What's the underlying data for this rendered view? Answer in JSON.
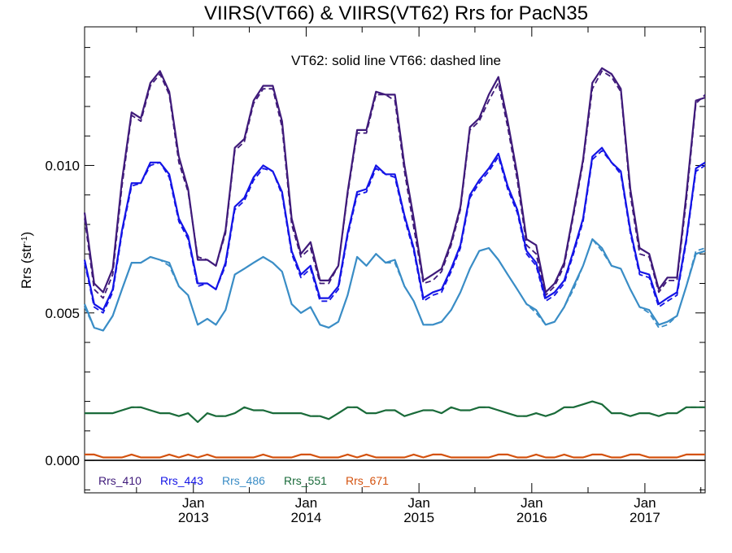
{
  "chart_data": {
    "type": "line",
    "title": "VIIRS(VT66) & VIIRS(VT62)  Rrs for PacN35",
    "annotation": "VT62: solid line   VT66: dashed line",
    "ylabel": "Rrs (str",
    "ylabel_sup": "-1",
    "ylabel_close": ")",
    "xlabel": "",
    "xlim": [
      "2012-01-15",
      "2017-07-15"
    ],
    "ylim": [
      -0.0011,
      0.0147
    ],
    "grid": false,
    "legend_position": "bottom-left",
    "y_ticks": [
      {
        "value": 0.0,
        "label": "0.000"
      },
      {
        "value": 0.005,
        "label": "0.005"
      },
      {
        "value": 0.01,
        "label": "0.010"
      }
    ],
    "x_ticks": [
      {
        "value": "2013-01-01",
        "label_top": "Jan",
        "label_bottom": "2013"
      },
      {
        "value": "2014-01-01",
        "label_top": "Jan",
        "label_bottom": "2014"
      },
      {
        "value": "2015-01-01",
        "label_top": "Jan",
        "label_bottom": "2015"
      },
      {
        "value": "2016-01-01",
        "label_top": "Jan",
        "label_bottom": "2016"
      },
      {
        "value": "2017-01-01",
        "label_top": "Jan",
        "label_bottom": "2017"
      }
    ],
    "x_months": [
      "2012-01-15",
      "2012-02-15",
      "2012-03-15",
      "2012-04-15",
      "2012-05-15",
      "2012-06-15",
      "2012-07-15",
      "2012-08-15",
      "2012-09-15",
      "2012-10-15",
      "2012-11-15",
      "2012-12-15",
      "2013-01-15",
      "2013-02-15",
      "2013-03-15",
      "2013-04-15",
      "2013-05-15",
      "2013-06-15",
      "2013-07-15",
      "2013-08-15",
      "2013-09-15",
      "2013-10-15",
      "2013-11-15",
      "2013-12-15",
      "2014-01-15",
      "2014-02-15",
      "2014-03-15",
      "2014-04-15",
      "2014-05-15",
      "2014-06-15",
      "2014-07-15",
      "2014-08-15",
      "2014-09-15",
      "2014-10-15",
      "2014-11-15",
      "2014-12-15",
      "2015-01-15",
      "2015-02-15",
      "2015-03-15",
      "2015-04-15",
      "2015-05-15",
      "2015-06-15",
      "2015-07-15",
      "2015-08-15",
      "2015-09-15",
      "2015-10-15",
      "2015-11-15",
      "2015-12-15",
      "2016-01-15",
      "2016-02-15",
      "2016-03-15",
      "2016-04-15",
      "2016-05-15",
      "2016-06-15",
      "2016-07-15",
      "2016-08-15",
      "2016-09-15",
      "2016-10-15",
      "2016-11-15",
      "2016-12-15",
      "2017-01-15",
      "2017-02-15",
      "2017-03-15",
      "2017-04-15",
      "2017-05-15",
      "2017-06-15",
      "2017-07-15"
    ],
    "series": [
      {
        "name": "Rrs_410",
        "color": "#3f1a7a",
        "vt62": [
          0.0084,
          0.006,
          0.0057,
          0.0065,
          0.0095,
          0.0118,
          0.0116,
          0.0128,
          0.0132,
          0.0125,
          0.0103,
          0.0092,
          0.0068,
          0.0068,
          0.0066,
          0.0078,
          0.0106,
          0.0109,
          0.0122,
          0.0127,
          0.0127,
          0.0115,
          0.0082,
          0.007,
          0.0074,
          0.0061,
          0.0061,
          0.0066,
          0.0091,
          0.0112,
          0.0112,
          0.0125,
          0.0124,
          0.0124,
          0.01,
          0.0082,
          0.0061,
          0.0063,
          0.0065,
          0.0074,
          0.0086,
          0.0113,
          0.0116,
          0.0124,
          0.013,
          0.0115,
          0.0097,
          0.0075,
          0.0073,
          0.0057,
          0.006,
          0.0067,
          0.0084,
          0.0102,
          0.0128,
          0.0133,
          0.0131,
          0.0126,
          0.0092,
          0.0072,
          0.007,
          0.0058,
          0.0062,
          0.0062,
          0.009,
          0.0122,
          0.0123
        ],
        "vt66": [
          0.0082,
          0.0058,
          0.0055,
          0.0063,
          0.0093,
          0.0117,
          0.0115,
          0.0127,
          0.0131,
          0.0124,
          0.0101,
          0.0091,
          0.0069,
          0.0068,
          0.0066,
          0.0077,
          0.0105,
          0.0108,
          0.0121,
          0.0126,
          0.0126,
          0.0113,
          0.008,
          0.0069,
          0.0072,
          0.006,
          0.006,
          0.0066,
          0.009,
          0.0111,
          0.0111,
          0.0124,
          0.0124,
          0.0122,
          0.0098,
          0.0079,
          0.006,
          0.0061,
          0.0064,
          0.0073,
          0.0085,
          0.0112,
          0.0115,
          0.0122,
          0.0128,
          0.0113,
          0.0095,
          0.0073,
          0.007,
          0.0056,
          0.0059,
          0.0066,
          0.0083,
          0.0101,
          0.0126,
          0.0132,
          0.013,
          0.0125,
          0.009,
          0.007,
          0.0069,
          0.0057,
          0.0061,
          0.0061,
          0.0088,
          0.0121,
          0.0124
        ]
      },
      {
        "name": "Rrs_443",
        "color": "#1414e6",
        "vt62": [
          0.0068,
          0.0053,
          0.0051,
          0.0058,
          0.0078,
          0.0094,
          0.0094,
          0.0101,
          0.0101,
          0.0097,
          0.0082,
          0.0076,
          0.006,
          0.006,
          0.0058,
          0.0067,
          0.0086,
          0.0089,
          0.0096,
          0.01,
          0.0098,
          0.0091,
          0.0071,
          0.0063,
          0.0066,
          0.0055,
          0.0055,
          0.0059,
          0.0077,
          0.0091,
          0.0092,
          0.01,
          0.0097,
          0.0097,
          0.0083,
          0.0072,
          0.0055,
          0.0057,
          0.0058,
          0.0065,
          0.0073,
          0.009,
          0.0095,
          0.0099,
          0.0104,
          0.0093,
          0.0085,
          0.0071,
          0.0067,
          0.0055,
          0.0057,
          0.0061,
          0.0071,
          0.0082,
          0.0103,
          0.0106,
          0.0101,
          0.0098,
          0.0078,
          0.0064,
          0.0063,
          0.0053,
          0.0055,
          0.0057,
          0.0075,
          0.0099,
          0.0101
        ],
        "vt66": [
          0.0067,
          0.0052,
          0.005,
          0.0057,
          0.0077,
          0.0093,
          0.0094,
          0.01,
          0.0101,
          0.0096,
          0.0081,
          0.0075,
          0.0059,
          0.006,
          0.0058,
          0.0066,
          0.0085,
          0.0088,
          0.0095,
          0.0099,
          0.0098,
          0.009,
          0.007,
          0.0062,
          0.0065,
          0.0054,
          0.0054,
          0.0058,
          0.0076,
          0.009,
          0.0091,
          0.0099,
          0.0097,
          0.0096,
          0.0082,
          0.0071,
          0.0054,
          0.0056,
          0.0057,
          0.0064,
          0.0072,
          0.0089,
          0.0094,
          0.0098,
          0.0103,
          0.0092,
          0.0084,
          0.007,
          0.0066,
          0.0054,
          0.0056,
          0.006,
          0.007,
          0.0081,
          0.0102,
          0.0105,
          0.0101,
          0.0097,
          0.0077,
          0.0063,
          0.0062,
          0.0052,
          0.0054,
          0.0056,
          0.0074,
          0.0098,
          0.01
        ]
      },
      {
        "name": "Rrs_486",
        "color": "#3a8dc6",
        "vt62": [
          0.0053,
          0.0045,
          0.0044,
          0.0049,
          0.0058,
          0.0067,
          0.0067,
          0.0069,
          0.0068,
          0.0067,
          0.0059,
          0.0056,
          0.0046,
          0.0048,
          0.0046,
          0.0051,
          0.0063,
          0.0065,
          0.0067,
          0.0069,
          0.0067,
          0.0064,
          0.0053,
          0.005,
          0.0052,
          0.0046,
          0.0045,
          0.0047,
          0.0056,
          0.0069,
          0.0066,
          0.007,
          0.0067,
          0.0068,
          0.0059,
          0.0054,
          0.0046,
          0.0046,
          0.0047,
          0.0051,
          0.0057,
          0.0065,
          0.0071,
          0.0072,
          0.0068,
          0.0063,
          0.0058,
          0.0053,
          0.0051,
          0.0046,
          0.0047,
          0.0052,
          0.0059,
          0.0066,
          0.0075,
          0.0072,
          0.0066,
          0.0065,
          0.0058,
          0.0052,
          0.0051,
          0.0046,
          0.0047,
          0.0049,
          0.0059,
          0.007,
          0.0071
        ],
        "vt66": [
          0.0052,
          0.0045,
          0.0044,
          0.0049,
          0.0058,
          0.0067,
          0.0067,
          0.0069,
          0.0068,
          0.0066,
          0.0059,
          0.0056,
          0.0046,
          0.0048,
          0.0046,
          0.0051,
          0.0063,
          0.0065,
          0.0067,
          0.0069,
          0.0067,
          0.0064,
          0.0053,
          0.005,
          0.0052,
          0.0046,
          0.0045,
          0.0047,
          0.0056,
          0.0069,
          0.0066,
          0.007,
          0.0067,
          0.0067,
          0.0059,
          0.0054,
          0.0046,
          0.0046,
          0.0047,
          0.0051,
          0.0057,
          0.0065,
          0.0071,
          0.0072,
          0.0068,
          0.0063,
          0.0058,
          0.0053,
          0.005,
          0.0046,
          0.0047,
          0.0052,
          0.0058,
          0.0066,
          0.0075,
          0.0071,
          0.0066,
          0.0065,
          0.0058,
          0.0052,
          0.005,
          0.0045,
          0.0046,
          0.0049,
          0.0059,
          0.0071,
          0.0072
        ]
      },
      {
        "name": "Rrs_551",
        "color": "#1a6b3a",
        "vt62": [
          0.0016,
          0.0016,
          0.0016,
          0.0016,
          0.0017,
          0.0018,
          0.0018,
          0.0017,
          0.0016,
          0.0016,
          0.0015,
          0.0016,
          0.0013,
          0.0016,
          0.0015,
          0.0015,
          0.0016,
          0.0018,
          0.0017,
          0.0017,
          0.0016,
          0.0016,
          0.0016,
          0.0016,
          0.0015,
          0.0015,
          0.0014,
          0.0016,
          0.0018,
          0.0018,
          0.0016,
          0.0016,
          0.0017,
          0.0017,
          0.0015,
          0.0016,
          0.0017,
          0.0017,
          0.0016,
          0.0018,
          0.0017,
          0.0017,
          0.0018,
          0.0018,
          0.0017,
          0.0016,
          0.0015,
          0.0015,
          0.0016,
          0.0015,
          0.0016,
          0.0018,
          0.0018,
          0.0019,
          0.002,
          0.0019,
          0.0016,
          0.0016,
          0.0015,
          0.0016,
          0.0016,
          0.0015,
          0.0016,
          0.0016,
          0.0018,
          0.0018,
          0.0018
        ],
        "vt66": [
          0.0016,
          0.0016,
          0.0016,
          0.0016,
          0.0017,
          0.0018,
          0.0018,
          0.0017,
          0.0016,
          0.0016,
          0.0015,
          0.0016,
          0.0013,
          0.0016,
          0.0015,
          0.0015,
          0.0016,
          0.0018,
          0.0017,
          0.0017,
          0.0016,
          0.0016,
          0.0016,
          0.0016,
          0.0015,
          0.0015,
          0.0014,
          0.0016,
          0.0018,
          0.0018,
          0.0016,
          0.0016,
          0.0017,
          0.0017,
          0.0015,
          0.0016,
          0.0017,
          0.0017,
          0.0016,
          0.0018,
          0.0017,
          0.0017,
          0.0018,
          0.0018,
          0.0017,
          0.0016,
          0.0015,
          0.0015,
          0.0016,
          0.0015,
          0.0016,
          0.0018,
          0.0018,
          0.0019,
          0.002,
          0.0019,
          0.0016,
          0.0016,
          0.0015,
          0.0016,
          0.0016,
          0.0015,
          0.0016,
          0.0016,
          0.0018,
          0.0018,
          0.0018
        ]
      },
      {
        "name": "Rrs_671",
        "color": "#d4520e",
        "vt62": [
          0.0002,
          0.0002,
          0.0001,
          0.0001,
          0.0001,
          0.0002,
          0.0001,
          0.0001,
          0.0001,
          0.0002,
          0.0001,
          0.0002,
          0.0001,
          0.0002,
          0.0001,
          0.0001,
          0.0001,
          0.0001,
          0.0001,
          0.0002,
          0.0001,
          0.0001,
          0.0001,
          0.0002,
          0.0002,
          0.0001,
          0.0001,
          0.0001,
          0.0002,
          0.0001,
          0.0002,
          0.0001,
          0.0001,
          0.0001,
          0.0001,
          0.0002,
          0.0001,
          0.0002,
          0.0002,
          0.0001,
          0.0001,
          0.0001,
          0.0001,
          0.0001,
          0.0002,
          0.0002,
          0.0001,
          0.0001,
          0.0002,
          0.0001,
          0.0001,
          0.0002,
          0.0001,
          0.0001,
          0.0002,
          0.0002,
          0.0001,
          0.0001,
          0.0002,
          0.0002,
          0.0001,
          0.0001,
          0.0001,
          0.0001,
          0.0002,
          0.0002,
          0.0002
        ],
        "vt66": [
          0.0002,
          0.0002,
          0.0001,
          0.0001,
          0.0001,
          0.0002,
          0.0001,
          0.0001,
          0.0001,
          0.0002,
          0.0001,
          0.0002,
          0.0001,
          0.0002,
          0.0001,
          0.0001,
          0.0001,
          0.0001,
          0.0001,
          0.0002,
          0.0001,
          0.0001,
          0.0001,
          0.0002,
          0.0002,
          0.0001,
          0.0001,
          0.0001,
          0.0002,
          0.0001,
          0.0002,
          0.0001,
          0.0001,
          0.0001,
          0.0001,
          0.0002,
          0.0001,
          0.0002,
          0.0002,
          0.0001,
          0.0001,
          0.0001,
          0.0001,
          0.0001,
          0.0002,
          0.0002,
          0.0001,
          0.0001,
          0.0002,
          0.0001,
          0.0001,
          0.0002,
          0.0001,
          0.0001,
          0.0002,
          0.0002,
          0.0001,
          0.0001,
          0.0002,
          0.0002,
          0.0001,
          0.0001,
          0.0001,
          0.0001,
          0.0002,
          0.0002,
          0.0002
        ]
      }
    ]
  }
}
